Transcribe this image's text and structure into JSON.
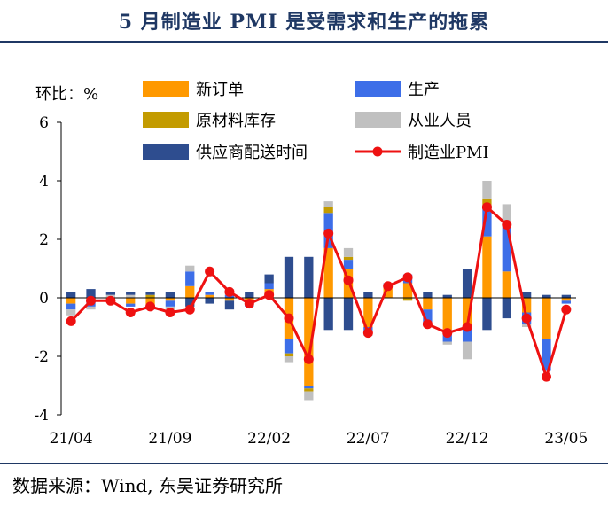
{
  "title": "5 月制造业 PMI 是受需求和生产的拖累",
  "source": "数据来源：Wind, 东吴证券研究所",
  "chart_data": {
    "type": "bar",
    "stacked": true,
    "ylabel": "环比：%",
    "ylim": [
      -4,
      6
    ],
    "yticks": [
      -4,
      -2,
      0,
      2,
      4,
      6
    ],
    "ytick_labels": [
      "-4",
      "-2",
      "0",
      "2",
      "4",
      "6"
    ],
    "x_tick_labels": [
      {
        "index": 0,
        "label": "21/04"
      },
      {
        "index": 5,
        "label": "21/09"
      },
      {
        "index": 10,
        "label": "22/02"
      },
      {
        "index": 15,
        "label": "22/07"
      },
      {
        "index": 20,
        "label": "22/12"
      },
      {
        "index": 25,
        "label": "23/05"
      }
    ],
    "categories": [
      "21/04",
      "21/05",
      "21/06",
      "21/07",
      "21/08",
      "21/09",
      "21/10",
      "21/11",
      "21/12",
      "22/01",
      "22/02",
      "22/03",
      "22/04",
      "22/05",
      "22/06",
      "22/07",
      "22/08",
      "22/09",
      "22/10",
      "22/11",
      "22/12",
      "23/01",
      "23/02",
      "23/03",
      "23/04",
      "23/05"
    ],
    "legend_placement": "top",
    "series": [
      {
        "name": "新订单",
        "kind": "bar",
        "color": "#ff9900",
        "values": [
          -0.2,
          -0.1,
          -0.1,
          -0.2,
          -0.3,
          -0.1,
          0.4,
          0.1,
          -0.1,
          -0.2,
          0.3,
          -1.4,
          -3.0,
          1.7,
          1.0,
          -1.0,
          0.4,
          0.5,
          -0.4,
          -1.1,
          -1.0,
          2.1,
          0.9,
          -0.5,
          -1.4,
          -0.1
        ]
      },
      {
        "name": "生产",
        "kind": "bar",
        "color": "#3d6ee8",
        "values": [
          -0.2,
          -0.2,
          0.0,
          -0.1,
          -0.1,
          -0.2,
          0.5,
          0.1,
          0.1,
          -0.1,
          0.2,
          -0.5,
          -0.1,
          1.2,
          0.3,
          -0.2,
          0.1,
          0.3,
          -0.5,
          -0.4,
          -0.5,
          1.0,
          1.7,
          -0.4,
          -1.1,
          -0.1
        ]
      },
      {
        "name": "原材料库存",
        "kind": "bar",
        "color": "#c39b00",
        "values": [
          0.0,
          0.0,
          0.0,
          0.0,
          0.1,
          0.0,
          0.0,
          0.0,
          0.0,
          0.0,
          0.0,
          -0.1,
          -0.1,
          0.2,
          0.1,
          0.0,
          0.0,
          -0.1,
          0.0,
          0.0,
          0.0,
          0.3,
          0.0,
          0.0,
          0.0,
          0.0
        ]
      },
      {
        "name": "从业人员",
        "kind": "bar",
        "color": "#c0c0c0",
        "values": [
          -0.2,
          -0.1,
          0.1,
          0.1,
          0.0,
          -0.1,
          0.2,
          0.0,
          0.2,
          0.0,
          0.0,
          -0.2,
          -0.3,
          0.2,
          0.3,
          -0.1,
          0.0,
          0.0,
          0.0,
          -0.1,
          -0.6,
          0.6,
          0.6,
          -0.1,
          0.0,
          0.0
        ]
      },
      {
        "name": "供应商配送时间",
        "kind": "bar",
        "color": "#2e4d8f",
        "values": [
          0.2,
          0.3,
          0.1,
          0.1,
          0.1,
          0.2,
          -0.3,
          -0.2,
          -0.3,
          0.2,
          0.3,
          1.4,
          1.4,
          -1.1,
          -1.1,
          0.2,
          0.0,
          0.0,
          0.2,
          0.1,
          1.0,
          -1.1,
          -0.7,
          0.2,
          0.1,
          0.1
        ]
      },
      {
        "name": "制造业PMI",
        "kind": "line",
        "color": "#ee1111",
        "values": [
          -0.8,
          -0.1,
          -0.1,
          -0.5,
          -0.3,
          -0.5,
          -0.4,
          0.9,
          0.2,
          -0.2,
          0.1,
          -0.7,
          -2.1,
          2.2,
          0.6,
          -1.2,
          0.4,
          0.7,
          -0.9,
          -1.2,
          -1.0,
          3.1,
          2.5,
          -0.7,
          -2.7,
          -0.4
        ]
      }
    ]
  }
}
